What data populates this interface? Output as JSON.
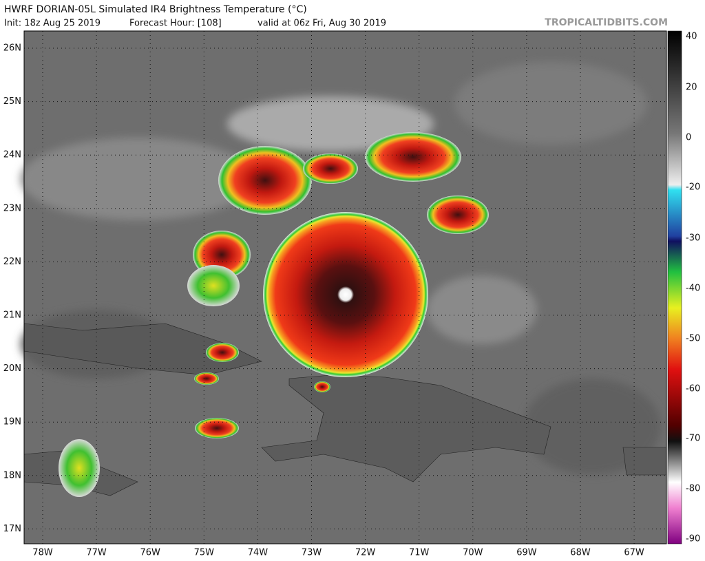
{
  "header": {
    "title": "HWRF DORIAN-05L Simulated IR4 Brightness Temperature (°C)",
    "init": "Init: 18z Aug 25 2019",
    "forecast_hour": "Forecast Hour: [108]",
    "valid": "valid at 06z Fri, Aug 30 2019",
    "source": "TROPICALTIDBITS.COM"
  },
  "map": {
    "lat_labels": [
      "26N",
      "25N",
      "24N",
      "23N",
      "22N",
      "21N",
      "20N",
      "19N",
      "18N",
      "17N"
    ],
    "lon_labels": [
      "78W",
      "77W",
      "76W",
      "75W",
      "74W",
      "73W",
      "72W",
      "71W",
      "70W",
      "69W",
      "68W",
      "67W"
    ]
  },
  "colorbar": {
    "ticks": [
      40,
      20,
      0,
      -20,
      -30,
      -40,
      -50,
      -60,
      -70,
      -80,
      -90
    ]
  }
}
